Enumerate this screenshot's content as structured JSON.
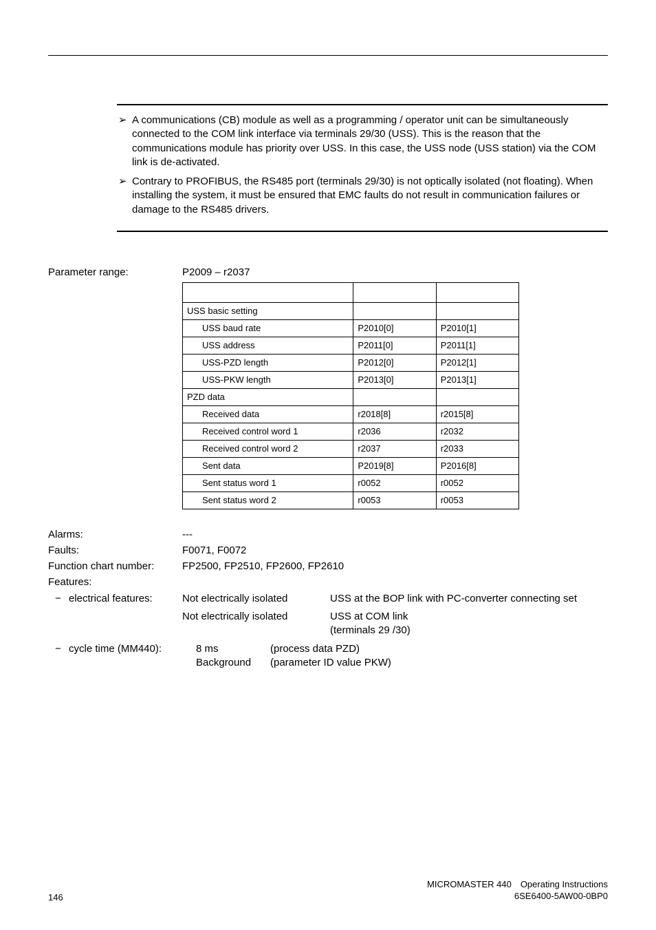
{
  "bullets": [
    {
      "glyph": "➢",
      "text": "A communications (CB) module as well as a programming / operator unit can be simultaneously connected to the COM link interface via terminals 29/30 (USS). This is the reason that the communications module has priority over USS. In this case, the USS node (USS station) via the COM link is de-activated."
    },
    {
      "glyph": "➢",
      "text": "Contrary to PROFIBUS, the RS485 port (terminals 29/30) is not optically isolated (not floating). When installing the system, it must be ensured that EMC faults do not result in communication failures or damage to the RS485 drivers."
    }
  ],
  "param_range": {
    "label": "Parameter range:",
    "value": "P2009 – r2037"
  },
  "table": {
    "groups": [
      {
        "label": "USS basic setting",
        "col2": "",
        "col3": ""
      }
    ],
    "rows1": [
      {
        "label": "USS baud rate",
        "c2": "P2010[0]",
        "c3": "P2010[1]"
      },
      {
        "label": "USS address",
        "c2": "P2011[0]",
        "c3": "P2011[1]"
      },
      {
        "label": "USS-PZD length",
        "c2": "P2012[0]",
        "c3": "P2012[1]"
      },
      {
        "label": "USS-PKW length",
        "c2": "P2013[0]",
        "c3": "P2013[1]"
      }
    ],
    "group2": {
      "label": "PZD data",
      "col2": "",
      "col3": ""
    },
    "rows2": [
      {
        "label": "Received data",
        "c2": "r2018[8]",
        "c3": "r2015[8]"
      },
      {
        "label": "Received control word 1",
        "c2": "r2036",
        "c3": "r2032"
      },
      {
        "label": "Received control word 2",
        "c2": "r2037",
        "c3": "r2033"
      },
      {
        "label": "Sent data",
        "c2": "P2019[8]",
        "c3": "P2016[8]"
      },
      {
        "label": "Sent status word 1",
        "c2": "r0052",
        "c3": "r0052"
      },
      {
        "label": "Sent status word 2",
        "c2": "r0053",
        "c3": "r0053"
      }
    ]
  },
  "alarms": {
    "label": "Alarms:",
    "value": "---"
  },
  "faults": {
    "label": "Faults:",
    "value": "F0071, F0072"
  },
  "fcn": {
    "label": "Function chart number:",
    "value": "FP2500, FP2510, FP2600, FP2610"
  },
  "features_label": "Features:",
  "feat_elec": {
    "dash": "−",
    "label": "electrical features:",
    "r1_mid": "Not electrically isolated",
    "r1_right": "USS at the BOP link with PC-converter connecting set",
    "r2_mid": "Not electrically isolated",
    "r2_right": "USS at COM link\n (terminals 29 /30)"
  },
  "cycle": {
    "dash": "−",
    "label": "cycle time (MM440):",
    "val": "8 ms",
    "inner1": "(process data PZD)",
    "bg_label": "Background",
    "inner2": "(parameter ID value PKW)"
  },
  "footer": {
    "page": "146",
    "r1": "MICROMASTER 440 Operating Instructions",
    "r2": "6SE6400-5AW00-0BP0"
  }
}
